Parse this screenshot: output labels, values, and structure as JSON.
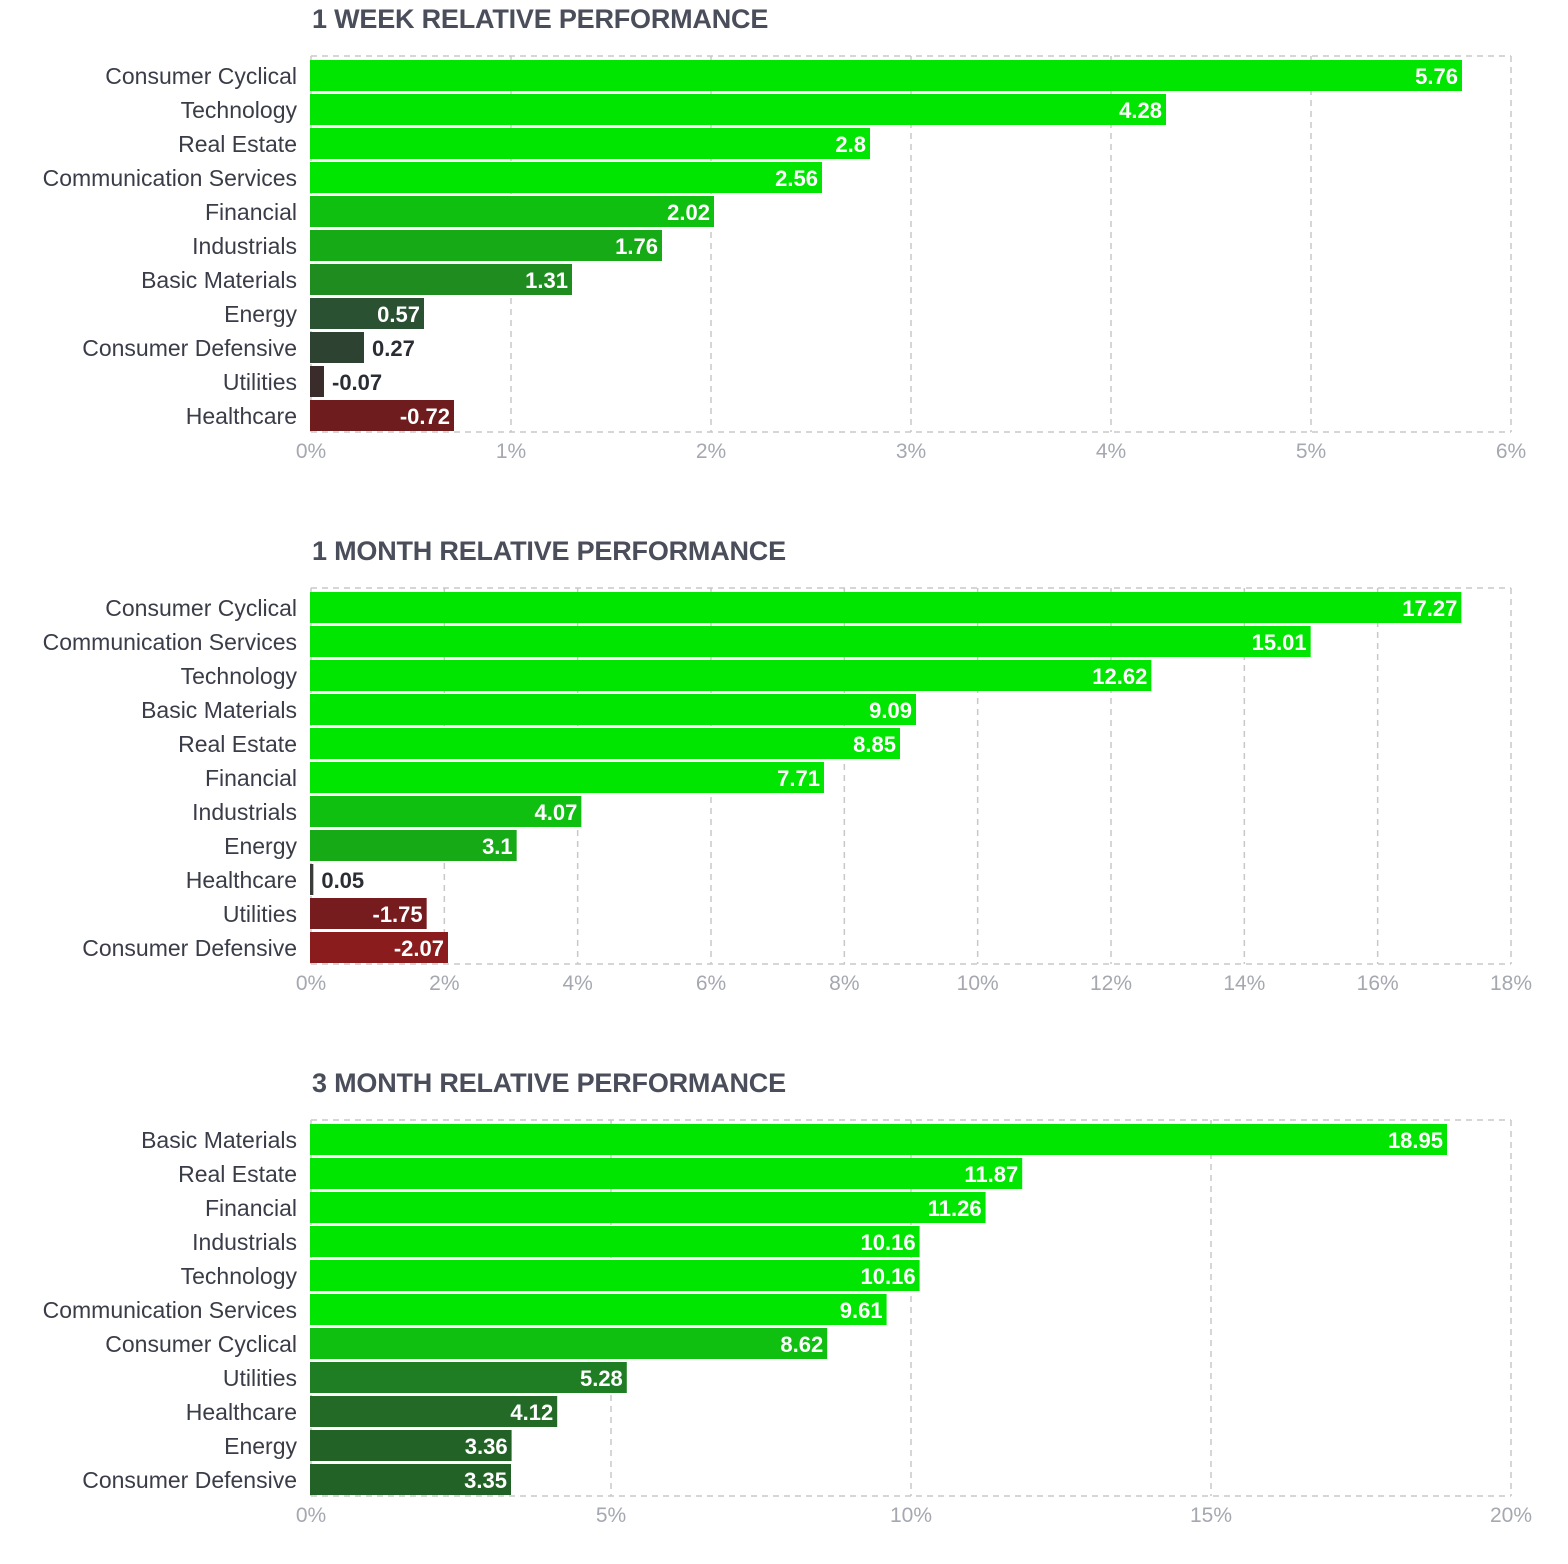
{
  "chart_data": [
    {
      "type": "bar",
      "orientation": "horizontal",
      "title": "1 WEEK RELATIVE PERFORMANCE",
      "categories": [
        "Consumer Cyclical",
        "Technology",
        "Real Estate",
        "Communication Services",
        "Financial",
        "Industrials",
        "Basic Materials",
        "Energy",
        "Consumer Defensive",
        "Utilities",
        "Healthcare"
      ],
      "values": [
        5.76,
        4.28,
        2.8,
        2.56,
        2.02,
        1.76,
        1.31,
        0.57,
        0.27,
        -0.07,
        -0.72
      ],
      "value_labels": [
        "5.76",
        "4.28",
        "2.8",
        "2.56",
        "2.02",
        "1.76",
        "1.31",
        "0.57",
        "0.27",
        "-0.07",
        "-0.72"
      ],
      "bar_colors": [
        "#00e600",
        "#00e600",
        "#00e600",
        "#00e600",
        "#10c010",
        "#16aa16",
        "#1f8c1f",
        "#2a5232",
        "#2e4232",
        "#3a2c2a",
        "#6e1c1e"
      ],
      "xticks": [
        0,
        1,
        2,
        3,
        4,
        5,
        6
      ],
      "xtick_labels": [
        "0%",
        "1%",
        "2%",
        "3%",
        "4%",
        "5%",
        "6%"
      ],
      "xlim": [
        0,
        6
      ],
      "bar_length": "absolute value",
      "grid": true
    },
    {
      "type": "bar",
      "orientation": "horizontal",
      "title": "1 MONTH RELATIVE PERFORMANCE",
      "categories": [
        "Consumer Cyclical",
        "Communication Services",
        "Technology",
        "Basic Materials",
        "Real Estate",
        "Financial",
        "Industrials",
        "Energy",
        "Healthcare",
        "Utilities",
        "Consumer Defensive"
      ],
      "values": [
        17.27,
        15.01,
        12.62,
        9.09,
        8.85,
        7.71,
        4.07,
        3.1,
        0.05,
        -1.75,
        -2.07
      ],
      "value_labels": [
        "17.27",
        "15.01",
        "12.62",
        "9.09",
        "8.85",
        "7.71",
        "4.07",
        "3.1",
        "0.05",
        "-1.75",
        "-2.07"
      ],
      "bar_colors": [
        "#00e600",
        "#00e600",
        "#00e600",
        "#00e600",
        "#00e600",
        "#00e600",
        "#10c010",
        "#16aa16",
        "#3a3c3a",
        "#761c1e",
        "#8a1c1e"
      ],
      "xticks": [
        0,
        2,
        4,
        6,
        8,
        10,
        12,
        14,
        16,
        18
      ],
      "xtick_labels": [
        "0%",
        "2%",
        "4%",
        "6%",
        "8%",
        "10%",
        "12%",
        "14%",
        "16%",
        "18%"
      ],
      "xlim": [
        0,
        18
      ],
      "bar_length": "absolute value",
      "grid": true
    },
    {
      "type": "bar",
      "orientation": "horizontal",
      "title": "3 MONTH RELATIVE PERFORMANCE",
      "categories": [
        "Basic Materials",
        "Real Estate",
        "Financial",
        "Industrials",
        "Technology",
        "Communication Services",
        "Consumer Cyclical",
        "Utilities",
        "Healthcare",
        "Energy",
        "Consumer Defensive"
      ],
      "values": [
        18.95,
        11.87,
        11.26,
        10.16,
        10.16,
        9.61,
        8.62,
        5.28,
        4.12,
        3.36,
        3.35
      ],
      "value_labels": [
        "18.95",
        "11.87",
        "11.26",
        "10.16",
        "10.16",
        "9.61",
        "8.62",
        "5.28",
        "4.12",
        "3.36",
        "3.35"
      ],
      "bar_colors": [
        "#00e600",
        "#00e600",
        "#00e600",
        "#00e600",
        "#00e600",
        "#00e600",
        "#10c010",
        "#1f7e24",
        "#226a26",
        "#236226",
        "#236226"
      ],
      "xticks": [
        0,
        5,
        10,
        15,
        20
      ],
      "xtick_labels": [
        "0%",
        "5%",
        "10%",
        "15%",
        "20%"
      ],
      "xlim": [
        0,
        20
      ],
      "bar_length": "absolute value",
      "grid": true
    }
  ],
  "colors": {
    "label_on_bar": "#ffffff",
    "label_outside_bar": "#2b2d35",
    "category_text": "#3a3c48",
    "tick_text": "#a5a8b0",
    "title_text": "#4a4d5a",
    "grid": "#c8c8c8"
  }
}
